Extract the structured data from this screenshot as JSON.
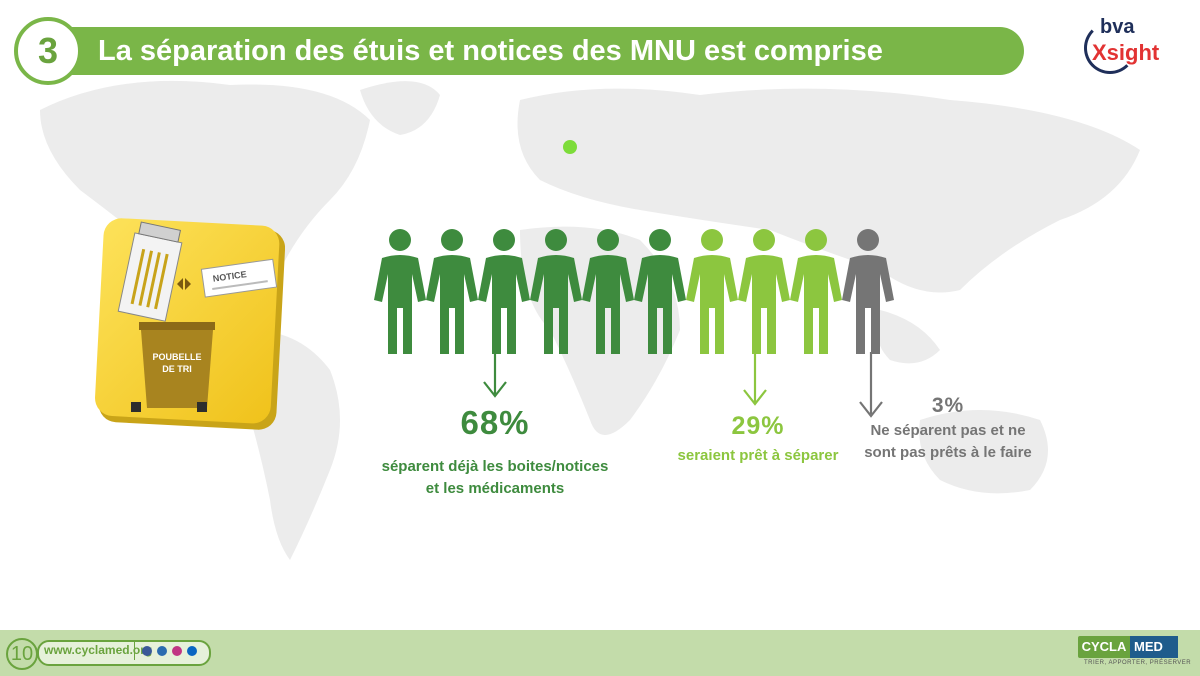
{
  "header": {
    "number": "3",
    "title": "La séparation des étuis et notices des MNU est comprise"
  },
  "brand": {
    "bva": "bva",
    "xsight": "Xsight"
  },
  "illustration": {
    "notice_label": "NOTICE",
    "bin_label_line1": "POUBELLE",
    "bin_label_line2": "DE TRI"
  },
  "people": {
    "dark_green_count": 6,
    "light_green_count": 3,
    "grey_count": 1,
    "colors": {
      "dark": "#3e8b3e",
      "light": "#8cc63f",
      "grey": "#757575"
    }
  },
  "stats": [
    {
      "percent": "68%",
      "line1": "séparent déjà les boites/notices",
      "line2": "et les médicaments",
      "color": "#3e8b3e"
    },
    {
      "percent": "29%",
      "line1": "seraient prêt à séparer",
      "line2": "",
      "color": "#8cc63f"
    },
    {
      "percent": "3%",
      "line1": "Ne séparent pas et ne",
      "line2": "sont pas prêts à le faire",
      "color": "#757575"
    }
  ],
  "footer": {
    "page_number": "10",
    "url": "www.cyclamed.org",
    "brand_left": "CYCLA",
    "brand_right": "MED",
    "tagline": "TRIER, APPORTER, PRÉSERVER"
  }
}
